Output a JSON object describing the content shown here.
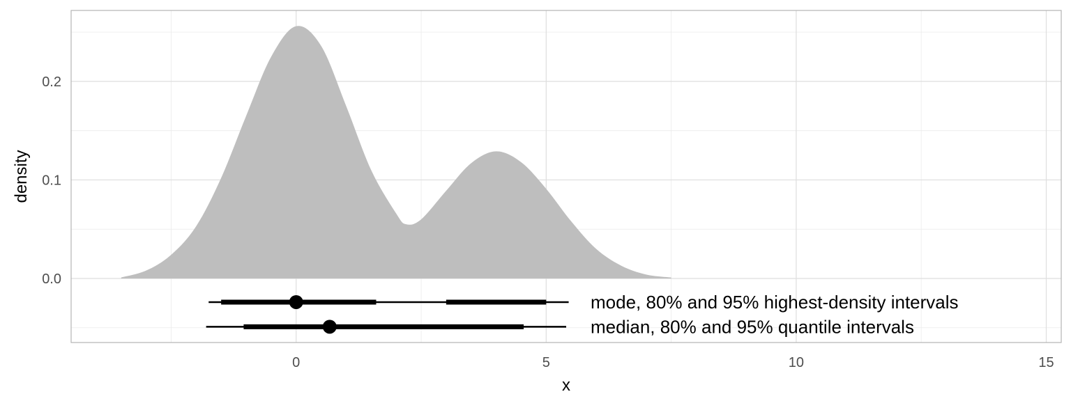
{
  "chart_data": {
    "type": "area",
    "title": "",
    "xlabel": "x",
    "ylabel": "density",
    "xlim": [
      -4.5,
      15.3
    ],
    "ylim": [
      -0.065,
      0.272
    ],
    "x_ticks": [
      0,
      5,
      10,
      15
    ],
    "x_tick_labels": [
      "0",
      "5",
      "10",
      "15"
    ],
    "y_ticks": [
      0.0,
      0.1,
      0.2
    ],
    "y_tick_labels": [
      "0.0",
      "0.1",
      "0.2"
    ],
    "grid": true,
    "fill_color": "#bebebe",
    "density": {
      "x": [
        -3.5,
        -3.0,
        -2.5,
        -2.0,
        -1.5,
        -1.0,
        -0.5,
        0.0,
        0.5,
        1.0,
        1.5,
        2.0,
        2.2,
        2.5,
        3.0,
        3.5,
        4.0,
        4.5,
        5.0,
        5.5,
        6.0,
        6.5,
        7.0,
        7.5
      ],
      "y": [
        0.001,
        0.008,
        0.024,
        0.053,
        0.102,
        0.165,
        0.225,
        0.256,
        0.236,
        0.175,
        0.11,
        0.066,
        0.055,
        0.06,
        0.089,
        0.117,
        0.129,
        0.118,
        0.091,
        0.058,
        0.03,
        0.013,
        0.004,
        0.001
      ]
    },
    "intervals": [
      {
        "label": "mode, 80% and 95% highest-density intervals",
        "y": -0.024,
        "point": 0.0,
        "interval_80": [
          [
            -1.5,
            1.6
          ],
          [
            3.0,
            5.0
          ]
        ],
        "interval_95": [
          [
            -1.75,
            5.45
          ]
        ]
      },
      {
        "label": "median, 80% and 95% quantile intervals",
        "y": -0.049,
        "point": 0.67,
        "interval_80": [
          [
            -1.05,
            4.55
          ]
        ],
        "interval_95": [
          [
            -1.8,
            5.4
          ]
        ]
      }
    ]
  }
}
